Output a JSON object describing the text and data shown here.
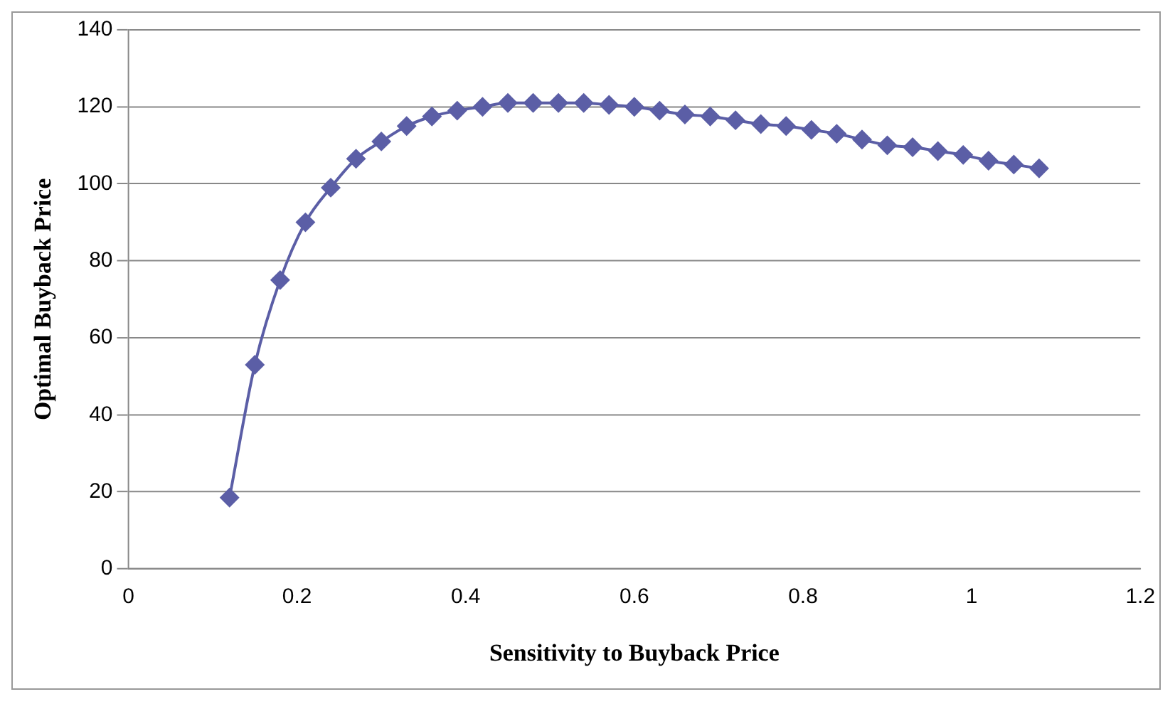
{
  "chart_data": {
    "type": "line",
    "xlabel": "Sensitivity to Buyback Price",
    "ylabel": "Optimal Buyback Price",
    "x": [
      0.12,
      0.15,
      0.18,
      0.21,
      0.24,
      0.27,
      0.3,
      0.33,
      0.36,
      0.39,
      0.42,
      0.45,
      0.48,
      0.51,
      0.54,
      0.57,
      0.6,
      0.63,
      0.66,
      0.69,
      0.72,
      0.75,
      0.78,
      0.81,
      0.84,
      0.87,
      0.9,
      0.93,
      0.96,
      0.99,
      1.02,
      1.05,
      1.08
    ],
    "series": [
      {
        "color": "#5b5ea6",
        "values": [
          18.5,
          53,
          75,
          90,
          99,
          106.5,
          111,
          115,
          117.5,
          119,
          120,
          121,
          121,
          121,
          121,
          120.5,
          120,
          119,
          118,
          117.5,
          116.5,
          115.5,
          115,
          114,
          113,
          111.5,
          110,
          109.5,
          108.5,
          107.5,
          106,
          105,
          104
        ]
      }
    ],
    "xlim": [
      0,
      1.2
    ],
    "xticks": [
      0,
      0.2,
      0.4,
      0.6,
      0.8,
      1,
      1.2
    ],
    "ylim": [
      0,
      140
    ],
    "yticks": [
      0,
      20,
      40,
      60,
      80,
      100,
      120,
      140
    ],
    "grid": "y",
    "legend": false,
    "marker": "diamond",
    "line_style": "solid"
  }
}
